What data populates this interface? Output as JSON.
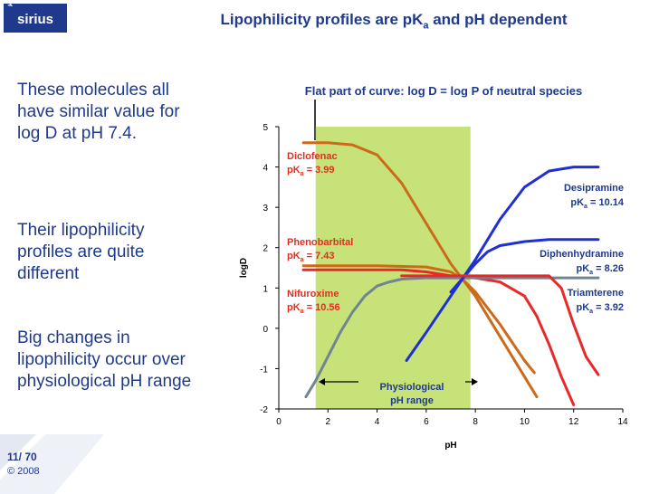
{
  "logo": {
    "text": "sirius"
  },
  "slide": {
    "title_pre": "Lipophilicity profiles are pK",
    "title_sub": "a",
    "title_post": " and pH dependent",
    "bullets": [
      "These molecules all have similar value for log D at pH 7.4.",
      "Their lipophilicity profiles are quite different",
      "Big changes in lipophilicity occur over physiological pH range"
    ],
    "page_number": "11/ 70",
    "copyright": "© 2008"
  },
  "colors": {
    "blue_text": "#1f3a8c",
    "red": "#e8292a",
    "orange": "#cc6a1a",
    "gray": "#6f8592",
    "blue": "#1f2fd6",
    "band": "#c8e27a",
    "red_text": "#e03020"
  },
  "chart_data": {
    "type": "line",
    "title": "Flat part of curve: log D = log P of neutral species",
    "xlabel": "pH",
    "ylabel": "logD",
    "xlim": [
      0,
      14
    ],
    "ylim": [
      -2,
      5
    ],
    "xticks": [
      0,
      2,
      4,
      6,
      8,
      10,
      12,
      14
    ],
    "yticks": [
      -2,
      -1,
      0,
      1,
      2,
      3,
      4,
      5
    ],
    "grid": false,
    "shaded_region": {
      "x": [
        1.5,
        7.8
      ],
      "label_line1": "Physiological",
      "label_line2": "pH range"
    },
    "series": [
      {
        "name": "Diclofenac",
        "pka_text": "pK",
        "pka_sub": "a",
        "pka_value": " = 3.99",
        "color": "orange",
        "points": [
          [
            1,
            4.6
          ],
          [
            1.5,
            4.6
          ],
          [
            2,
            4.6
          ],
          [
            3,
            4.55
          ],
          [
            4,
            4.3
          ],
          [
            5,
            3.6
          ],
          [
            6,
            2.6
          ],
          [
            7,
            1.6
          ],
          [
            7.5,
            1.2
          ],
          [
            8,
            0.8
          ],
          [
            9,
            -0.2
          ],
          [
            10,
            -1.2
          ],
          [
            10.5,
            -1.7
          ]
        ]
      },
      {
        "name": "Phenobarbital",
        "pka_text": "pK",
        "pka_sub": "a",
        "pka_value": " = 7.43",
        "color": "orange",
        "points": [
          [
            1,
            1.55
          ],
          [
            2,
            1.55
          ],
          [
            4,
            1.55
          ],
          [
            6,
            1.52
          ],
          [
            7,
            1.4
          ],
          [
            7.5,
            1.2
          ],
          [
            8,
            0.9
          ],
          [
            9,
            0.1
          ],
          [
            10,
            -0.8
          ],
          [
            10.4,
            -1.1
          ]
        ]
      },
      {
        "name": "Nifuroxime",
        "pka_text": "pK",
        "pka_sub": "a",
        "pka_value": " = 10.56",
        "color": "red",
        "points": [
          [
            1,
            1.45
          ],
          [
            3,
            1.45
          ],
          [
            5,
            1.45
          ],
          [
            6,
            1.4
          ],
          [
            7,
            1.3
          ],
          [
            8,
            1.25
          ],
          [
            9,
            1.15
          ],
          [
            10,
            0.8
          ],
          [
            10.5,
            0.3
          ],
          [
            11,
            -0.4
          ],
          [
            11.5,
            -1.2
          ],
          [
            12,
            -1.9
          ]
        ]
      },
      {
        "name": "Nifuroxime base",
        "color": "gray",
        "points": [
          [
            1.1,
            -1.7
          ],
          [
            1.5,
            -1.3
          ],
          [
            2,
            -0.7
          ],
          [
            2.5,
            -0.1
          ],
          [
            3,
            0.4
          ],
          [
            3.5,
            0.8
          ],
          [
            4,
            1.05
          ],
          [
            4.5,
            1.15
          ],
          [
            5,
            1.22
          ],
          [
            6,
            1.25
          ],
          [
            8,
            1.25
          ],
          [
            10,
            1.25
          ],
          [
            13,
            1.25
          ]
        ]
      },
      {
        "name": "Desipramine",
        "pka_text": "pK",
        "pka_sub": "a",
        "pka_value": " = 10.14",
        "color": "blue",
        "points": [
          [
            5.2,
            -0.8
          ],
          [
            6,
            -0.1
          ],
          [
            7,
            0.8
          ],
          [
            7.5,
            1.25
          ],
          [
            8,
            1.7
          ],
          [
            9,
            2.7
          ],
          [
            10,
            3.5
          ],
          [
            11,
            3.9
          ],
          [
            12,
            4.0
          ],
          [
            13,
            4.0
          ]
        ]
      },
      {
        "name": "Diphenhydramine",
        "pka_text": "pK",
        "pka_sub": "a",
        "pka_value": " = 8.26",
        "color": "blue",
        "points": [
          [
            7,
            0.9
          ],
          [
            7.5,
            1.25
          ],
          [
            8,
            1.6
          ],
          [
            8.5,
            1.9
          ],
          [
            9,
            2.05
          ],
          [
            10,
            2.15
          ],
          [
            11,
            2.2
          ],
          [
            13,
            2.2
          ]
        ]
      },
      {
        "name": "Triamterene",
        "pka_text": "pK",
        "pka_sub": "a",
        "pka_value": " = 3.92",
        "color": "red",
        "points": [
          [
            5,
            1.3
          ],
          [
            7,
            1.3
          ],
          [
            10,
            1.3
          ],
          [
            11,
            1.3
          ],
          [
            11.5,
            1.0
          ],
          [
            12,
            0.1
          ],
          [
            12.5,
            -0.7
          ],
          [
            13,
            -1.15
          ]
        ]
      }
    ]
  }
}
